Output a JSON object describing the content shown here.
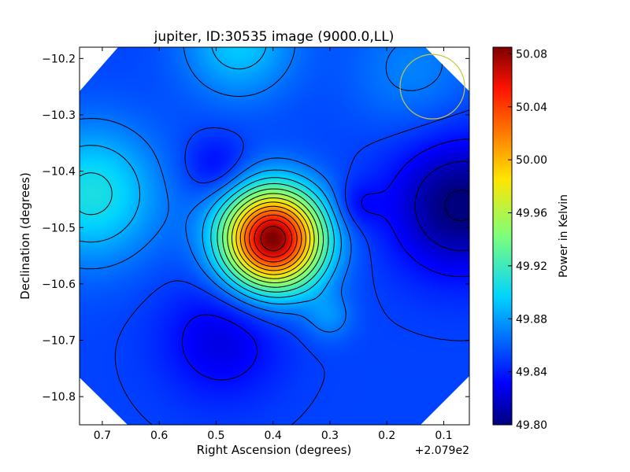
{
  "chart_data": {
    "type": "heatmap",
    "title": "jupiter, ID:30535 image (9000.0,LL)",
    "xlabel": "Right Ascension (degrees)",
    "ylabel": "Declination (degrees)",
    "x_offset_label": "+2.079e2",
    "xlim": [
      0.74,
      0.055
    ],
    "ylim": [
      -10.85,
      -10.18
    ],
    "x_ticks": [
      {
        "value": 0.7,
        "label": "0.7"
      },
      {
        "value": 0.6,
        "label": "0.6"
      },
      {
        "value": 0.5,
        "label": "0.5"
      },
      {
        "value": 0.4,
        "label": "0.4"
      },
      {
        "value": 0.3,
        "label": "0.3"
      },
      {
        "value": 0.2,
        "label": "0.2"
      },
      {
        "value": 0.1,
        "label": "0.1"
      }
    ],
    "y_ticks": [
      {
        "value": -10.2,
        "label": "−10.2"
      },
      {
        "value": -10.3,
        "label": "−10.3"
      },
      {
        "value": -10.4,
        "label": "−10.4"
      },
      {
        "value": -10.5,
        "label": "−10.5"
      },
      {
        "value": -10.6,
        "label": "−10.6"
      },
      {
        "value": -10.7,
        "label": "−10.7"
      },
      {
        "value": -10.8,
        "label": "−10.8"
      }
    ],
    "colorbar": {
      "label": "Power in Kelvin",
      "range": [
        49.8,
        50.085
      ],
      "colormap": "jet",
      "ticks": [
        {
          "value": 50.08,
          "label": "50.08"
        },
        {
          "value": 50.04,
          "label": "50.04"
        },
        {
          "value": 50.0,
          "label": "50.00"
        },
        {
          "value": 49.96,
          "label": "49.96"
        },
        {
          "value": 49.92,
          "label": "49.92"
        },
        {
          "value": 49.88,
          "label": "49.88"
        },
        {
          "value": 49.84,
          "label": "49.84"
        },
        {
          "value": 49.8,
          "label": "49.80"
        }
      ]
    },
    "features": [
      {
        "name": "peak",
        "ra": 0.4,
        "dec": -10.52,
        "value": 50.08
      },
      {
        "name": "cold region east",
        "ra": 0.07,
        "dec": -10.46,
        "value": 49.8
      },
      {
        "name": "cold trough south",
        "ra": 0.49,
        "dec": -10.7,
        "value": 49.82
      },
      {
        "name": "warm region west",
        "ra": 0.72,
        "dec": -10.44,
        "value": 49.9
      },
      {
        "name": "warm region north",
        "ra": 0.46,
        "dec": -10.19,
        "value": 49.89
      },
      {
        "name": "cool hole",
        "ra": 0.5,
        "dec": -10.39,
        "value": 49.84
      },
      {
        "name": "cool hole",
        "ra": 0.25,
        "dec": -10.46,
        "value": 49.84
      },
      {
        "name": "warm spot",
        "ra": 0.3,
        "dec": -10.66,
        "value": 49.88
      }
    ],
    "beam_marker": {
      "ra": 0.12,
      "dec": -10.25,
      "color": "#c8c83c"
    },
    "grid": false
  }
}
